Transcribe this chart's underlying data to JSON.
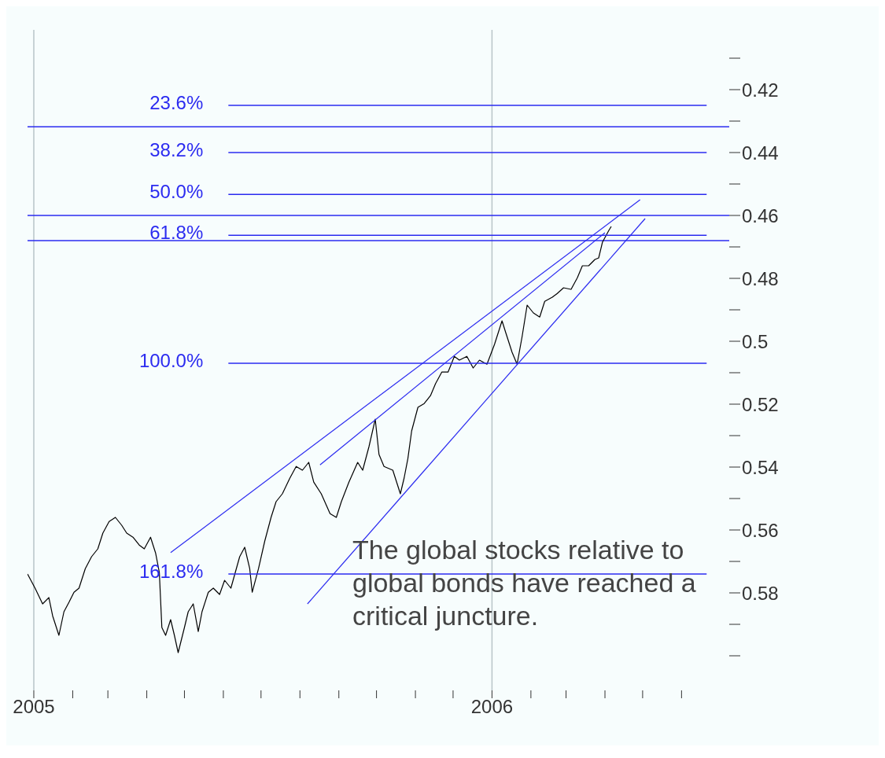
{
  "chart_data": {
    "type": "line",
    "ylim": [
      0.611,
      0.401
    ],
    "yticks": [
      {
        "value": 0.41,
        "label": null
      },
      0.42,
      {
        "value": 0.43,
        "label": null
      },
      0.44,
      {
        "value": 0.45,
        "label": null
      },
      0.46,
      {
        "value": 0.47,
        "label": null
      },
      0.48,
      {
        "value": 0.49,
        "label": null
      },
      0.5,
      {
        "value": 0.51,
        "label": null
      },
      0.52,
      {
        "value": 0.53,
        "label": null
      },
      0.54,
      {
        "value": 0.55,
        "label": null
      },
      0.56,
      {
        "value": 0.57,
        "label": null
      },
      0.58,
      {
        "value": 0.59,
        "label": null
      },
      {
        "value": 0.6,
        "label": null
      }
    ],
    "xlim": [
      "2004-12-27",
      "2006-07-09"
    ],
    "xticks": [
      {
        "value": "2005-01-01",
        "label": "2005"
      },
      {
        "value": "2005-02-01",
        "label": null
      },
      {
        "value": "2005-03-01",
        "label": null
      },
      {
        "value": "2005-04-01",
        "label": null
      },
      {
        "value": "2005-05-01",
        "label": null
      },
      {
        "value": "2005-06-01",
        "label": null
      },
      {
        "value": "2005-07-01",
        "label": null
      },
      {
        "value": "2005-08-01",
        "label": null
      },
      {
        "value": "2005-09-01",
        "label": null
      },
      {
        "value": "2005-10-01",
        "label": null
      },
      {
        "value": "2005-11-01",
        "label": null
      },
      {
        "value": "2005-12-01",
        "label": null
      },
      {
        "value": "2006-01-01",
        "label": "2006"
      },
      {
        "value": "2006-02-01",
        "label": null
      },
      {
        "value": "2006-03-01",
        "label": null
      },
      {
        "value": "2006-04-01",
        "label": null
      },
      {
        "value": "2006-05-01",
        "label": null
      },
      {
        "value": "2006-06-01",
        "label": null
      }
    ],
    "annotations": [
      "The global stocks relative to global bonds have reached a critical juncture."
    ],
    "ref_lines": [
      {
        "axis": "x",
        "value": "2005-01-01",
        "color": "#b8c4c8"
      },
      {
        "axis": "x",
        "value": "2006-01-01",
        "color": "#b8c4c8"
      },
      {
        "axis": "y",
        "value": 0.4318,
        "color": "#2b2bf0"
      },
      {
        "axis": "y",
        "value": 0.46,
        "color": "#2b2bf0"
      },
      {
        "axis": "y",
        "value": 0.468,
        "color": "#2b2bf0"
      }
    ],
    "series": [
      {
        "color": "#000000",
        "x": [
          "2004-12-27",
          "2005-01-02",
          "2005-01-08",
          "2005-01-13",
          "2005-01-16",
          "2005-01-21",
          "2005-01-25",
          "2005-01-29",
          "2005-02-02",
          "2005-02-06",
          "2005-02-11",
          "2005-02-16",
          "2005-02-21",
          "2005-02-25",
          "2005-03-02",
          "2005-03-07",
          "2005-03-12",
          "2005-03-16",
          "2005-03-21",
          "2005-03-26",
          "2005-03-30",
          "2005-04-04",
          "2005-04-08",
          "2005-04-11",
          "2005-04-13",
          "2005-04-16",
          "2005-04-20",
          "2005-04-23",
          "2005-04-26",
          "2005-05-01",
          "2005-05-04",
          "2005-05-08",
          "2005-05-12",
          "2005-05-15",
          "2005-05-20",
          "2005-05-24",
          "2005-05-29",
          "2005-06-02",
          "2005-06-07",
          "2005-06-14",
          "2005-06-18",
          "2005-06-22",
          "2005-06-24",
          "2005-06-29",
          "2005-07-04",
          "2005-07-09",
          "2005-07-13",
          "2005-07-18",
          "2005-07-24",
          "2005-07-29",
          "2005-08-03",
          "2005-08-08",
          "2005-08-12",
          "2005-08-18",
          "2005-08-25",
          "2005-08-30",
          "2005-09-03",
          "2005-09-09",
          "2005-09-16",
          "2005-09-20",
          "2005-09-25",
          "2005-09-30",
          "2005-10-03",
          "2005-10-07",
          "2005-10-14",
          "2005-10-20",
          "2005-10-23",
          "2005-10-26",
          "2005-10-29",
          "2005-11-03",
          "2005-11-08",
          "2005-11-13",
          "2005-11-17",
          "2005-11-22",
          "2005-11-27",
          "2005-12-02",
          "2005-12-06",
          "2005-12-12",
          "2005-12-17",
          "2005-12-22",
          "2005-12-28",
          "2006-01-03",
          "2006-01-09",
          "2006-01-12",
          "2006-01-17",
          "2006-01-21",
          "2006-01-25",
          "2006-01-29",
          "2006-02-03",
          "2006-02-08",
          "2006-02-12",
          "2006-02-18",
          "2006-02-22",
          "2006-02-27",
          "2006-03-05",
          "2006-03-10",
          "2006-03-14",
          "2006-03-19",
          "2006-03-24",
          "2006-03-27",
          "2006-03-30",
          "2006-04-04",
          "2006-04-06"
        ],
        "values": [
          0.574,
          0.5785,
          0.5835,
          0.5815,
          0.5873,
          0.5935,
          0.586,
          0.583,
          0.5798,
          0.5785,
          0.5723,
          0.5685,
          0.566,
          0.561,
          0.5573,
          0.556,
          0.5585,
          0.561,
          0.5623,
          0.5648,
          0.566,
          0.5623,
          0.5673,
          0.5735,
          0.591,
          0.5935,
          0.5885,
          0.5935,
          0.599,
          0.591,
          0.586,
          0.5835,
          0.5923,
          0.586,
          0.5798,
          0.5785,
          0.5805,
          0.576,
          0.5785,
          0.5685,
          0.5655,
          0.5723,
          0.5798,
          0.5723,
          0.5635,
          0.556,
          0.551,
          0.5485,
          0.5435,
          0.5398,
          0.541,
          0.5385,
          0.5448,
          0.5485,
          0.5548,
          0.556,
          0.551,
          0.5448,
          0.5385,
          0.541,
          0.5335,
          0.5248,
          0.536,
          0.5398,
          0.541,
          0.5485,
          0.5435,
          0.5373,
          0.5285,
          0.521,
          0.5198,
          0.5173,
          0.5135,
          0.5098,
          0.5098,
          0.5048,
          0.506,
          0.5048,
          0.5085,
          0.506,
          0.5073,
          0.501,
          0.4935,
          0.4973,
          0.5035,
          0.5073,
          0.4985,
          0.4885,
          0.491,
          0.4923,
          0.4873,
          0.486,
          0.4848,
          0.483,
          0.4835,
          0.4798,
          0.476,
          0.476,
          0.474,
          0.4735,
          0.4685,
          0.4648,
          0.4635
        ]
      },
      {
        "name": "23.6%",
        "color": "#2b2bf0",
        "x": [
          "2005-06-05",
          "2006-06-21"
        ],
        "values": [
          0.425,
          0.425
        ]
      },
      {
        "name": "38.2%",
        "color": "#2b2bf0",
        "x": [
          "2005-06-05",
          "2006-06-21"
        ],
        "values": [
          0.44,
          0.44
        ]
      },
      {
        "name": "50.0%",
        "color": "#2b2bf0",
        "x": [
          "2005-06-05",
          "2006-06-21"
        ],
        "values": [
          0.4533,
          0.4533
        ]
      },
      {
        "name": "61.8%",
        "color": "#2b2bf0",
        "x": [
          "2005-06-05",
          "2006-06-21"
        ],
        "values": [
          0.4663,
          0.4663
        ]
      },
      {
        "name": "100.0%",
        "color": "#2b2bf0",
        "x": [
          "2005-06-05",
          "2006-06-21"
        ],
        "values": [
          0.507,
          0.507
        ]
      },
      {
        "name": "161.8%",
        "color": "#2b2bf0",
        "x": [
          "2005-06-05",
          "2006-06-21"
        ],
        "values": [
          0.574,
          0.574
        ]
      },
      {
        "color": "#2b2bf0",
        "x": [
          "2005-04-20",
          "2006-04-29"
        ],
        "values": [
          0.5672,
          0.455
        ]
      },
      {
        "color": "#2b2bf0",
        "x": [
          "2005-08-17",
          "2006-04-01"
        ],
        "values": [
          0.5393,
          0.4655
        ]
      },
      {
        "color": "#2b2bf0",
        "x": [
          "2005-08-07",
          "2006-05-03"
        ],
        "values": [
          0.5835,
          0.461
        ]
      }
    ]
  }
}
